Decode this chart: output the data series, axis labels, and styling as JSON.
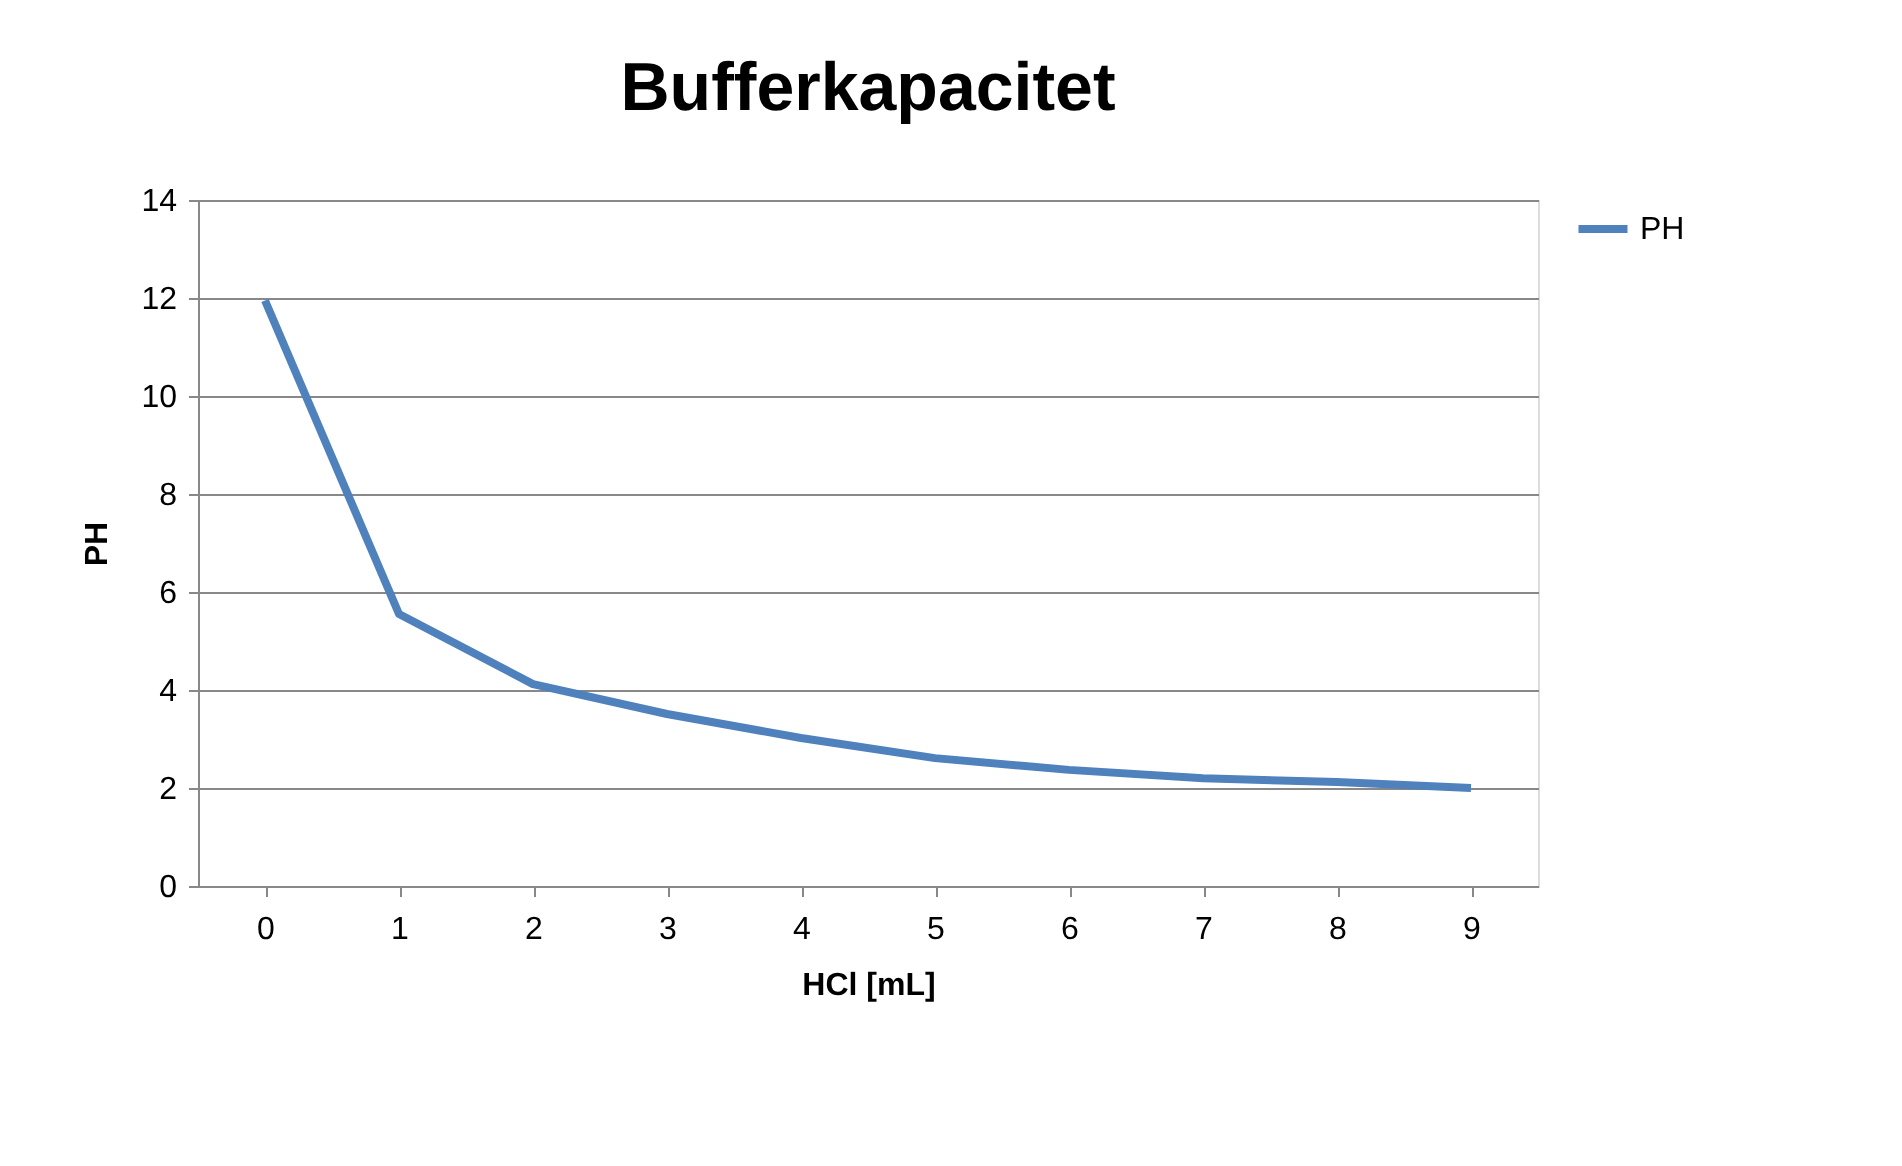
{
  "chart_data": {
    "type": "line",
    "title": "Bufferkapacitet",
    "xlabel": "HCl [mL]",
    "ylabel": "PH",
    "categories": [
      "0",
      "1",
      "2",
      "3",
      "4",
      "5",
      "6",
      "7",
      "8",
      "9"
    ],
    "series": [
      {
        "name": "PH",
        "color": "#4f81bd",
        "values": [
          11.95,
          5.55,
          4.12,
          3.51,
          3.02,
          2.61,
          2.37,
          2.2,
          2.12,
          2.0
        ]
      }
    ],
    "ylim": [
      0,
      14
    ],
    "yticks": [
      0,
      2,
      4,
      6,
      8,
      10,
      12,
      14
    ],
    "grid": "y",
    "legend": "right",
    "marker": "none",
    "line_style": "solid"
  }
}
